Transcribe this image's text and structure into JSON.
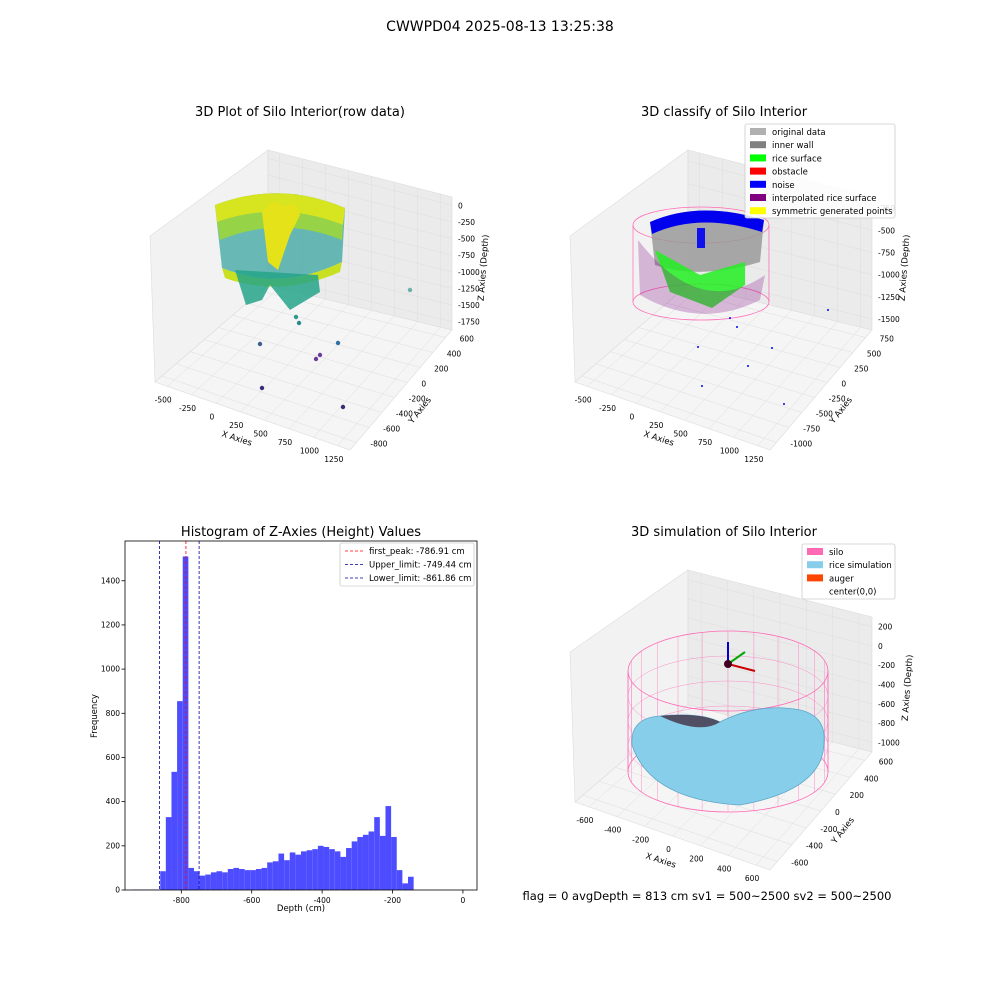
{
  "figure": {
    "suptitle": "CWWPD04 2025-08-13 13:25:38",
    "footer": "flag = 0     avgDepth = 813 cm  sv1 = 500~2500  sv2 = 500~2500"
  },
  "panels": {
    "raw": {
      "title": "3D Plot of Silo Interior(row data)",
      "xlabel": "X Axies",
      "ylabel": "Y Axies",
      "zlabel": "Z Axies (Depth)",
      "xticks": [
        "-500",
        "-250",
        "0",
        "250",
        "500",
        "750",
        "1000",
        "1250"
      ],
      "yticks": [
        "600",
        "400",
        "200",
        "0",
        "-200",
        "-400",
        "-600",
        "-800"
      ],
      "zticks": [
        "0",
        "-250",
        "-500",
        "-750",
        "-1000",
        "-1250",
        "-1500",
        "-1750"
      ]
    },
    "classify": {
      "title": "3D classify of Silo Interior",
      "xlabel": "X Axies",
      "ylabel": "Y Axies",
      "zlabel": "Z Axies (Depth)",
      "xticks": [
        "-500",
        "-250",
        "0",
        "250",
        "500",
        "750",
        "1000",
        "1250"
      ],
      "yticks": [
        "750",
        "500",
        "250",
        "0",
        "-250",
        "-500",
        "-750",
        "-1000"
      ],
      "zticks": [
        "-250",
        "-500",
        "-750",
        "-1000",
        "-1250",
        "-1500"
      ],
      "legend": [
        {
          "label": "original data",
          "color": "#b0b0b0"
        },
        {
          "label": "inner wall",
          "color": "#808080"
        },
        {
          "label": "rice surface",
          "color": "#00ff00"
        },
        {
          "label": "obstacle",
          "color": "#ff0000"
        },
        {
          "label": "noise",
          "color": "#0000ff"
        },
        {
          "label": "interpolated rice surface",
          "color": "#800080"
        },
        {
          "label": "symmetric generated points",
          "color": "#ffff00"
        }
      ]
    },
    "simulation": {
      "title": "3D simulation of Silo Interior",
      "xlabel": "X Axies",
      "ylabel": "Y Axies",
      "zlabel": "Z Axies (Depth)",
      "xticks": [
        "-600",
        "-400",
        "-200",
        "0",
        "200",
        "400",
        "600"
      ],
      "yticks": [
        "600",
        "400",
        "200",
        "0",
        "-200",
        "-400",
        "-600"
      ],
      "zticks": [
        "200",
        "0",
        "-200",
        "-400",
        "-600",
        "-800",
        "-1000"
      ],
      "legend": [
        {
          "label": "silo",
          "color": "#ff69b4"
        },
        {
          "label": "rice simulation",
          "color": "#87ceeb"
        },
        {
          "label": "auger",
          "color": "#ff4500"
        },
        {
          "label": "center(0,0)",
          "color": "none"
        }
      ]
    }
  },
  "chart_data": {
    "type": "bar",
    "title": "Histogram of Z-Axies (Height) Values",
    "xlabel": "Depth (cm)",
    "ylabel": "Frequency",
    "xlim": [
      -960,
      40
    ],
    "ylim": [
      0,
      1580
    ],
    "xticks": [
      -800,
      -600,
      -400,
      -200,
      0
    ],
    "yticks": [
      0,
      200,
      400,
      600,
      800,
      1000,
      1200,
      1400
    ],
    "bar_color": "#4d4dff",
    "bins_start": -940,
    "bin_width": 16,
    "values": [
      2,
      2,
      2,
      2,
      2,
      85,
      330,
      535,
      855,
      1510,
      100,
      85,
      65,
      70,
      80,
      85,
      80,
      95,
      100,
      95,
      90,
      90,
      95,
      100,
      125,
      130,
      165,
      135,
      170,
      160,
      175,
      180,
      185,
      200,
      195,
      185,
      175,
      150,
      190,
      220,
      240,
      250,
      265,
      330,
      245,
      380,
      240,
      90,
      30,
      60
    ],
    "vlines": [
      {
        "label": "first_peak: -786.91 cm",
        "x": -786.91,
        "color": "#ff0000"
      },
      {
        "label": "Upper_limit: -749.44 cm",
        "x": -749.44,
        "color": "#0000aa"
      },
      {
        "label": "Lower_limit: -861.86 cm",
        "x": -861.86,
        "color": "#0000aa"
      }
    ],
    "grid": false,
    "legend_position": "top-right"
  }
}
